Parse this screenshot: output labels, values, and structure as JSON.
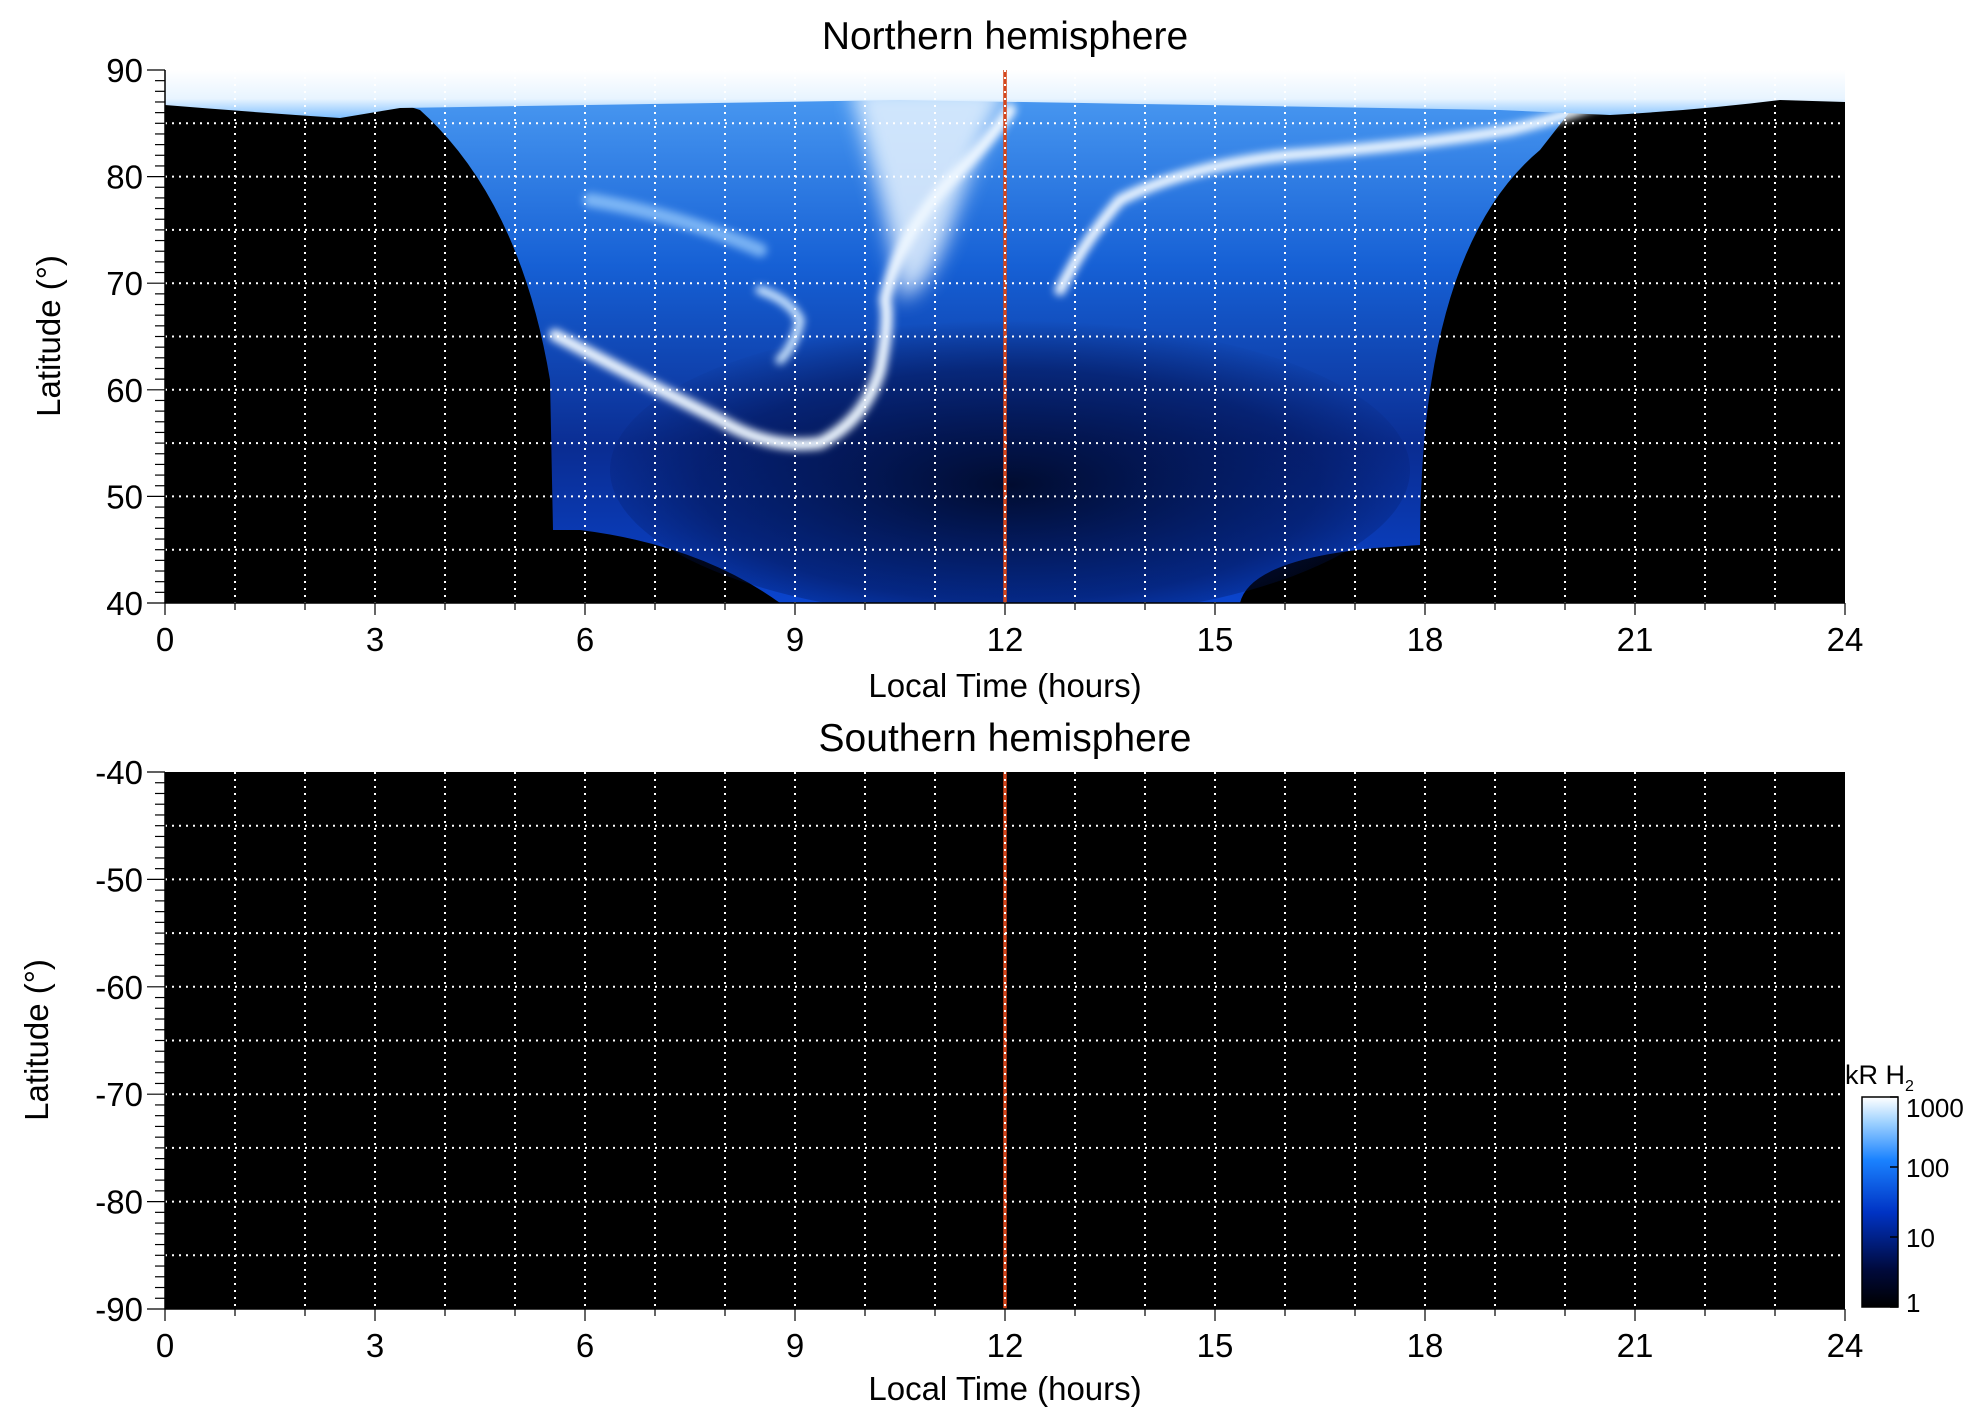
{
  "chart_data": [
    {
      "type": "heatmap",
      "title": "Northern hemisphere",
      "xlabel": "Local Time (hours)",
      "ylabel": "Latitude (°)",
      "xlim": [
        0,
        24
      ],
      "ylim": [
        40,
        90
      ],
      "x_ticks": [
        0,
        3,
        6,
        9,
        12,
        15,
        18,
        21,
        24
      ],
      "y_ticks": [
        40,
        50,
        60,
        70,
        80,
        90
      ],
      "grid": true,
      "grid_style": "dotted white",
      "background_color": "#000000",
      "marker_line": {
        "x": 12,
        "color": "#d4461c"
      },
      "features": [
        {
          "kind": "polar_cap_saturated",
          "lat_min": 86,
          "lat_max": 90,
          "lt_min": 0,
          "lt_max": 24,
          "value_kR": 1000
        },
        {
          "kind": "main_oval_arc_dawn",
          "points": [
            [
              5.6,
              64.0
            ],
            [
              6.6,
              61.0
            ],
            [
              7.6,
              58.0
            ],
            [
              8.4,
              56.0
            ],
            [
              9.3,
              55.0
            ],
            [
              10.0,
              57.0
            ],
            [
              10.4,
              61.0
            ],
            [
              10.7,
              66.0
            ],
            [
              11.2,
              72.0
            ],
            [
              11.7,
              78.0
            ],
            [
              12.0,
              84.0
            ]
          ],
          "value_kR": 1000
        },
        {
          "kind": "main_oval_arc_dusk",
          "points": [
            [
              12.7,
              69.0
            ],
            [
              13.1,
              74.0
            ],
            [
              13.8,
              78.0
            ],
            [
              15.0,
              80.5
            ],
            [
              16.5,
              81.5
            ],
            [
              18.0,
              82.5
            ],
            [
              19.5,
              84.0
            ],
            [
              21.0,
              86.0
            ]
          ],
          "value_kR": 1000
        },
        {
          "kind": "diffuse_emission_region",
          "lt_min": 5.5,
          "lt_max": 18.0,
          "lat_min": 40,
          "lat_max": 86,
          "value_kR": [
            1,
            300
          ]
        },
        {
          "kind": "cusp_bright_spot",
          "lt": 9.0,
          "lat": 68.0,
          "value_kR": 1000
        }
      ]
    },
    {
      "type": "heatmap",
      "title": "Southern hemisphere",
      "xlabel": "Local Time (hours)",
      "ylabel": "Latitude (°)",
      "xlim": [
        0,
        24
      ],
      "ylim": [
        -90,
        -40
      ],
      "x_ticks": [
        0,
        3,
        6,
        9,
        12,
        15,
        18,
        21,
        24
      ],
      "y_ticks": [
        -40,
        -50,
        -60,
        -70,
        -80,
        -90
      ],
      "grid": true,
      "grid_style": "dotted white",
      "background_color": "#000000",
      "marker_line": {
        "x": 12,
        "color": "#d4461c"
      },
      "features": []
    }
  ],
  "colorbar": {
    "label_main": "kR H",
    "label_sub": "2",
    "scale": "log",
    "range": [
      1,
      1000
    ],
    "ticks": [
      1,
      10,
      100,
      1000
    ],
    "colors": [
      "#000000",
      "#000a3d",
      "#0033c4",
      "#1a82ff",
      "#9fd2ff",
      "#ffffff"
    ]
  }
}
